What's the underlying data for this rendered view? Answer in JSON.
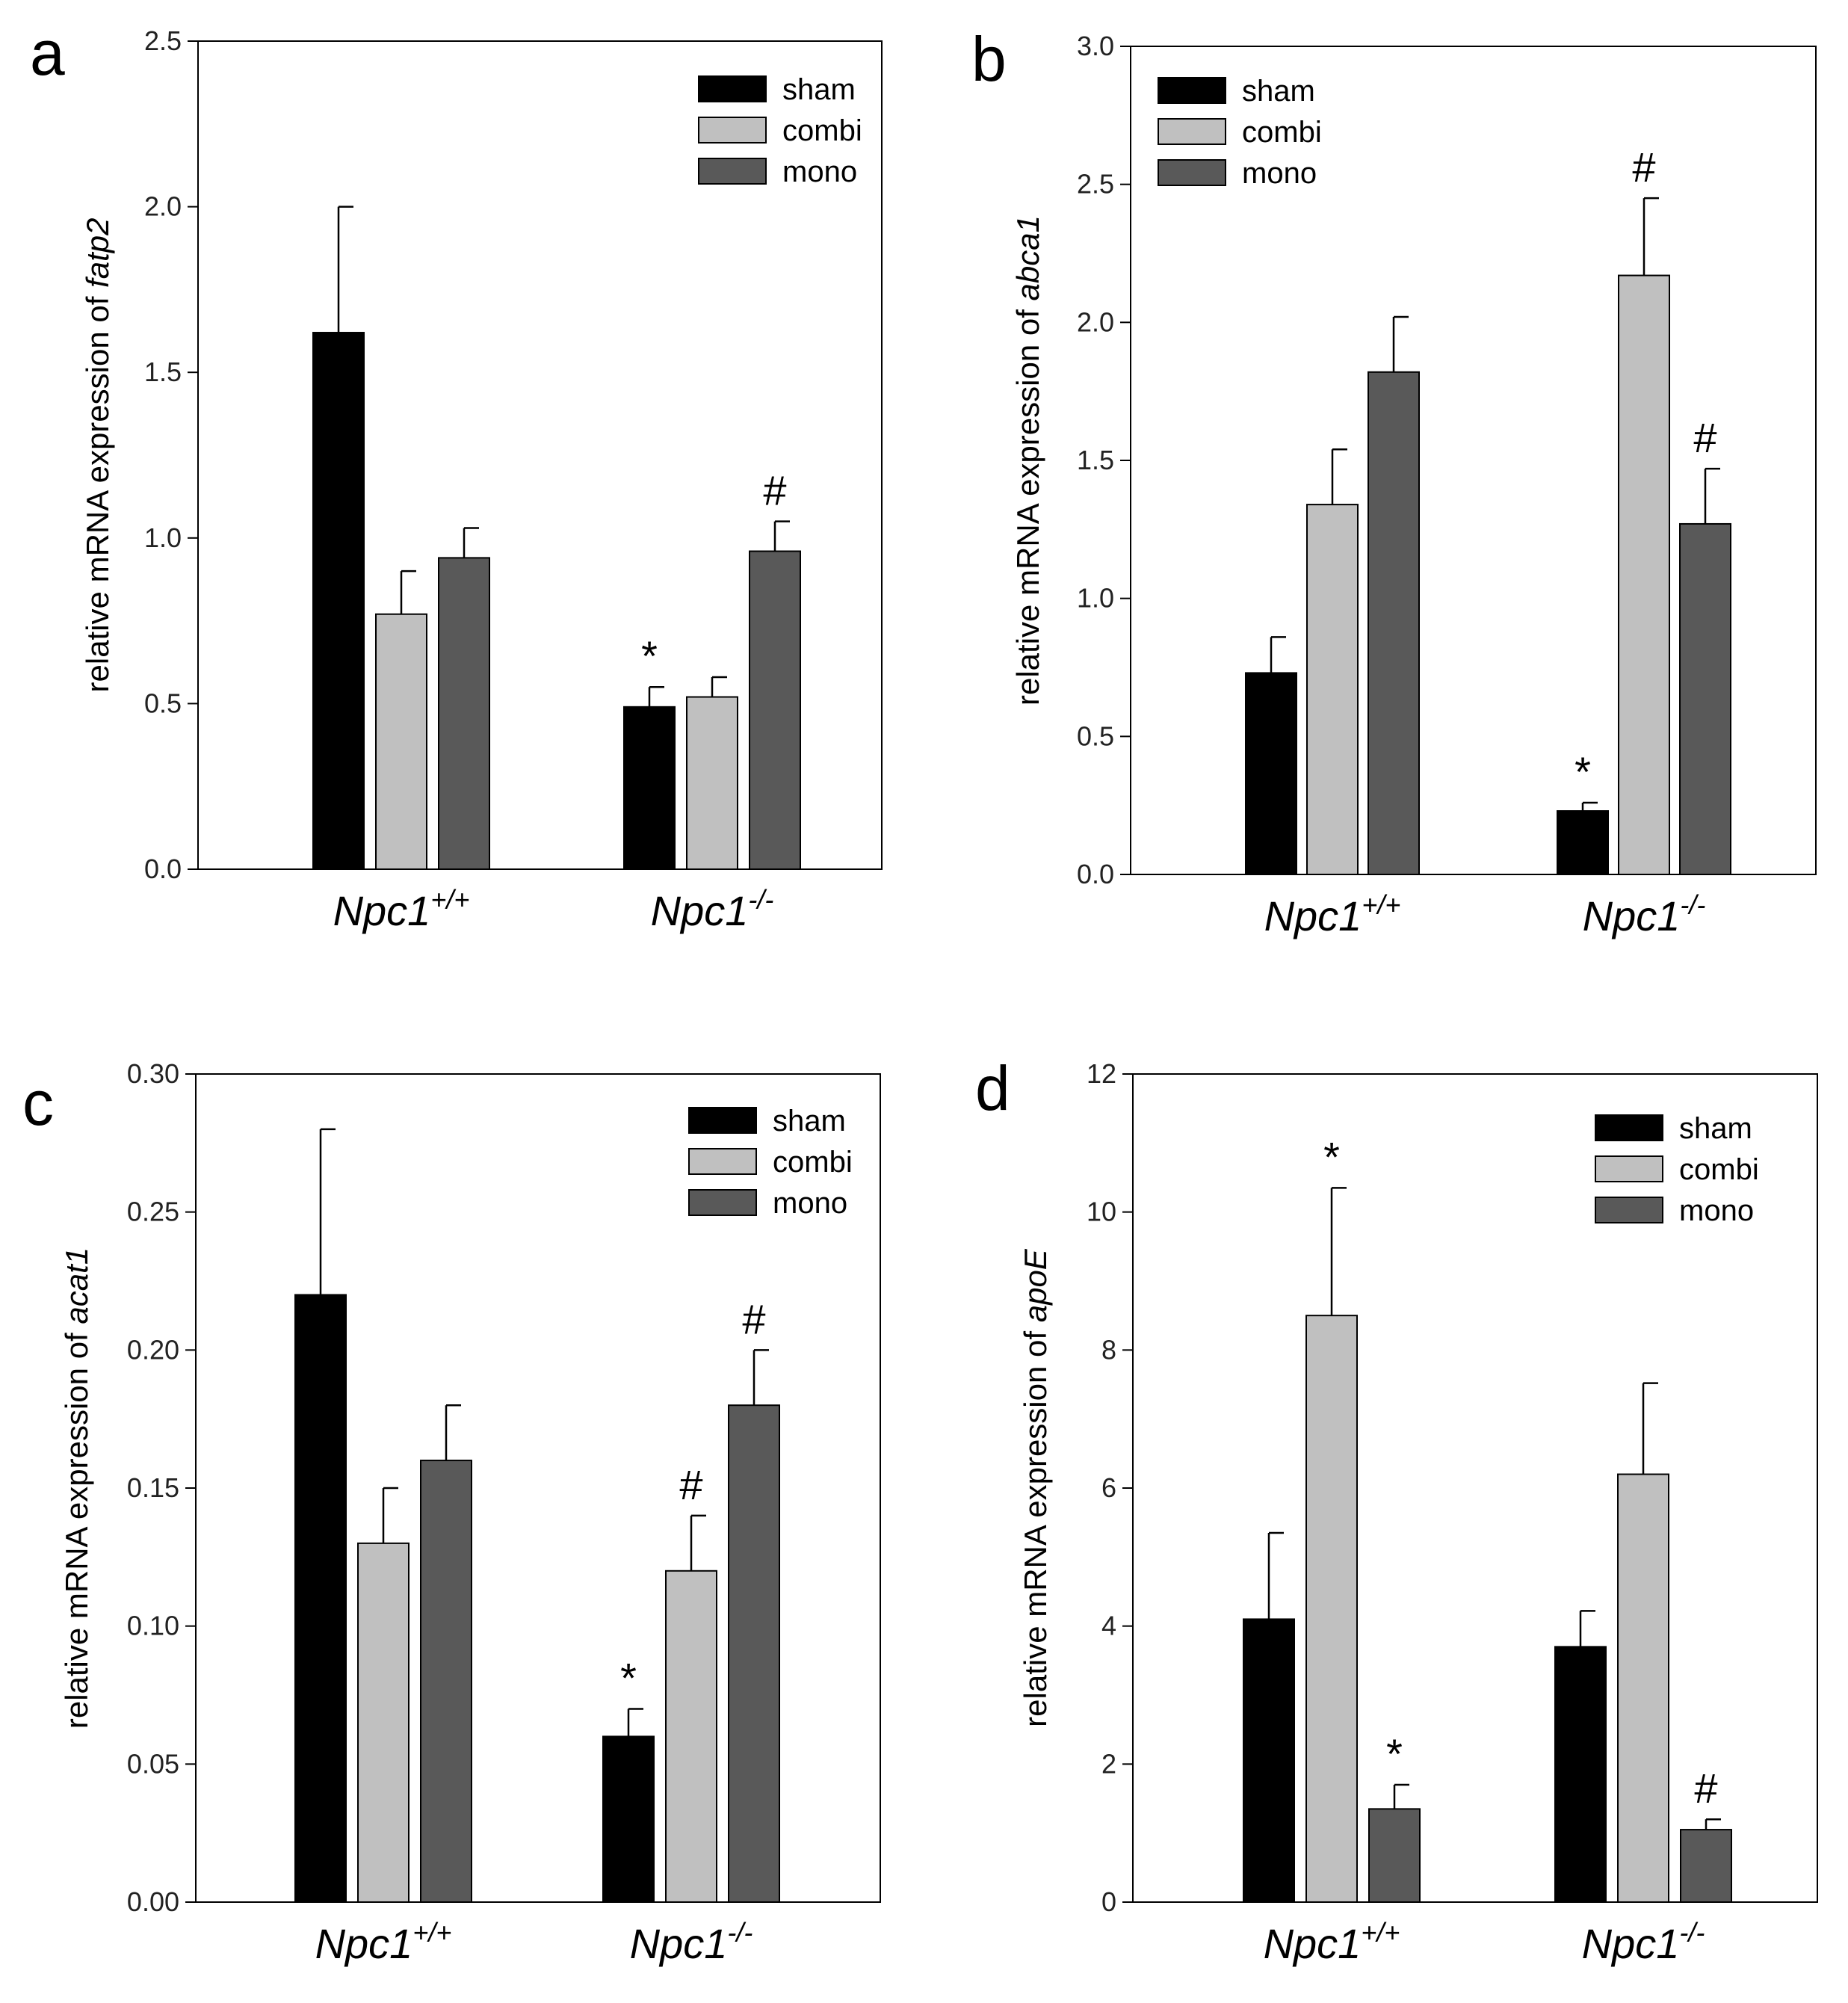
{
  "colors": {
    "sham": "#000000",
    "combi": "#c0c0c0",
    "mono": "#595959",
    "axis": "#000000"
  },
  "groups": [
    {
      "base": "Npc1",
      "sup": "+/+"
    },
    {
      "base": "Npc1",
      "sup": "-/-"
    }
  ],
  "legend": [
    "sham",
    "combi",
    "mono"
  ],
  "chart_data": [
    {
      "panel": "a",
      "type": "bar",
      "gene": "fatp2",
      "ylabel_prefix": "relative mRNA expression of ",
      "categories": [
        "Npc1+/+",
        "Npc1-/-"
      ],
      "ylim": [
        0,
        2.5
      ],
      "yticks": [
        "0.0",
        "0.5",
        "1.0",
        "1.5",
        "2.0",
        "2.5"
      ],
      "series": [
        {
          "name": "sham",
          "values": [
            1.62,
            0.49
          ],
          "errors": [
            0.38,
            0.06
          ],
          "markers": [
            "",
            "*"
          ]
        },
        {
          "name": "combi",
          "values": [
            0.77,
            0.52
          ],
          "errors": [
            0.13,
            0.06
          ],
          "markers": [
            "",
            ""
          ]
        },
        {
          "name": "mono",
          "values": [
            0.94,
            0.96
          ],
          "errors": [
            0.09,
            0.09
          ],
          "markers": [
            "",
            "#"
          ]
        }
      ],
      "legend_position": "top-right"
    },
    {
      "panel": "b",
      "type": "bar",
      "gene": "abca1",
      "ylabel_prefix": "relative mRNA expression of ",
      "categories": [
        "Npc1+/+",
        "Npc1-/-"
      ],
      "ylim": [
        0,
        3.0
      ],
      "yticks": [
        "0.0",
        "0.5",
        "1.0",
        "1.5",
        "2.0",
        "2.5",
        "3.0"
      ],
      "series": [
        {
          "name": "sham",
          "values": [
            0.73,
            0.23
          ],
          "errors": [
            0.13,
            0.03
          ],
          "markers": [
            "",
            "*"
          ]
        },
        {
          "name": "combi",
          "values": [
            1.34,
            2.17
          ],
          "errors": [
            0.2,
            0.28
          ],
          "markers": [
            "",
            "#"
          ]
        },
        {
          "name": "mono",
          "values": [
            1.82,
            1.27
          ],
          "errors": [
            0.2,
            0.2
          ],
          "markers": [
            "",
            "#"
          ]
        }
      ],
      "legend_position": "top-left"
    },
    {
      "panel": "c",
      "type": "bar",
      "gene": "acat1",
      "ylabel_prefix": "relative mRNA expression of ",
      "categories": [
        "Npc1+/+",
        "Npc1-/-"
      ],
      "ylim": [
        0,
        0.3
      ],
      "yticks": [
        "0.00",
        "0.05",
        "0.10",
        "0.15",
        "0.20",
        "0.25",
        "0.30"
      ],
      "series": [
        {
          "name": "sham",
          "values": [
            0.22,
            0.06
          ],
          "errors": [
            0.06,
            0.01
          ],
          "markers": [
            "",
            "*"
          ]
        },
        {
          "name": "combi",
          "values": [
            0.13,
            0.12
          ],
          "errors": [
            0.02,
            0.02
          ],
          "markers": [
            "",
            "#"
          ]
        },
        {
          "name": "mono",
          "values": [
            0.16,
            0.18
          ],
          "errors": [
            0.02,
            0.02
          ],
          "markers": [
            "",
            "#"
          ]
        }
      ],
      "legend_position": "top-right"
    },
    {
      "panel": "d",
      "type": "bar",
      "gene": "apoE",
      "ylabel_prefix": "relative mRNA expression of ",
      "categories": [
        "Npc1+/+",
        "Npc1-/-"
      ],
      "ylim": [
        0,
        12
      ],
      "yticks": [
        "0",
        "2",
        "4",
        "6",
        "8",
        "10",
        "12"
      ],
      "series": [
        {
          "name": "sham",
          "values": [
            4.1,
            3.7
          ],
          "errors": [
            1.25,
            0.52
          ],
          "markers": [
            "",
            ""
          ]
        },
        {
          "name": "combi",
          "values": [
            8.5,
            6.2
          ],
          "errors": [
            1.85,
            1.32
          ],
          "markers": [
            "*",
            ""
          ]
        },
        {
          "name": "mono",
          "values": [
            1.35,
            1.05
          ],
          "errors": [
            0.35,
            0.15
          ],
          "markers": [
            "*",
            "#"
          ]
        }
      ],
      "legend_position": "top-right"
    }
  ]
}
